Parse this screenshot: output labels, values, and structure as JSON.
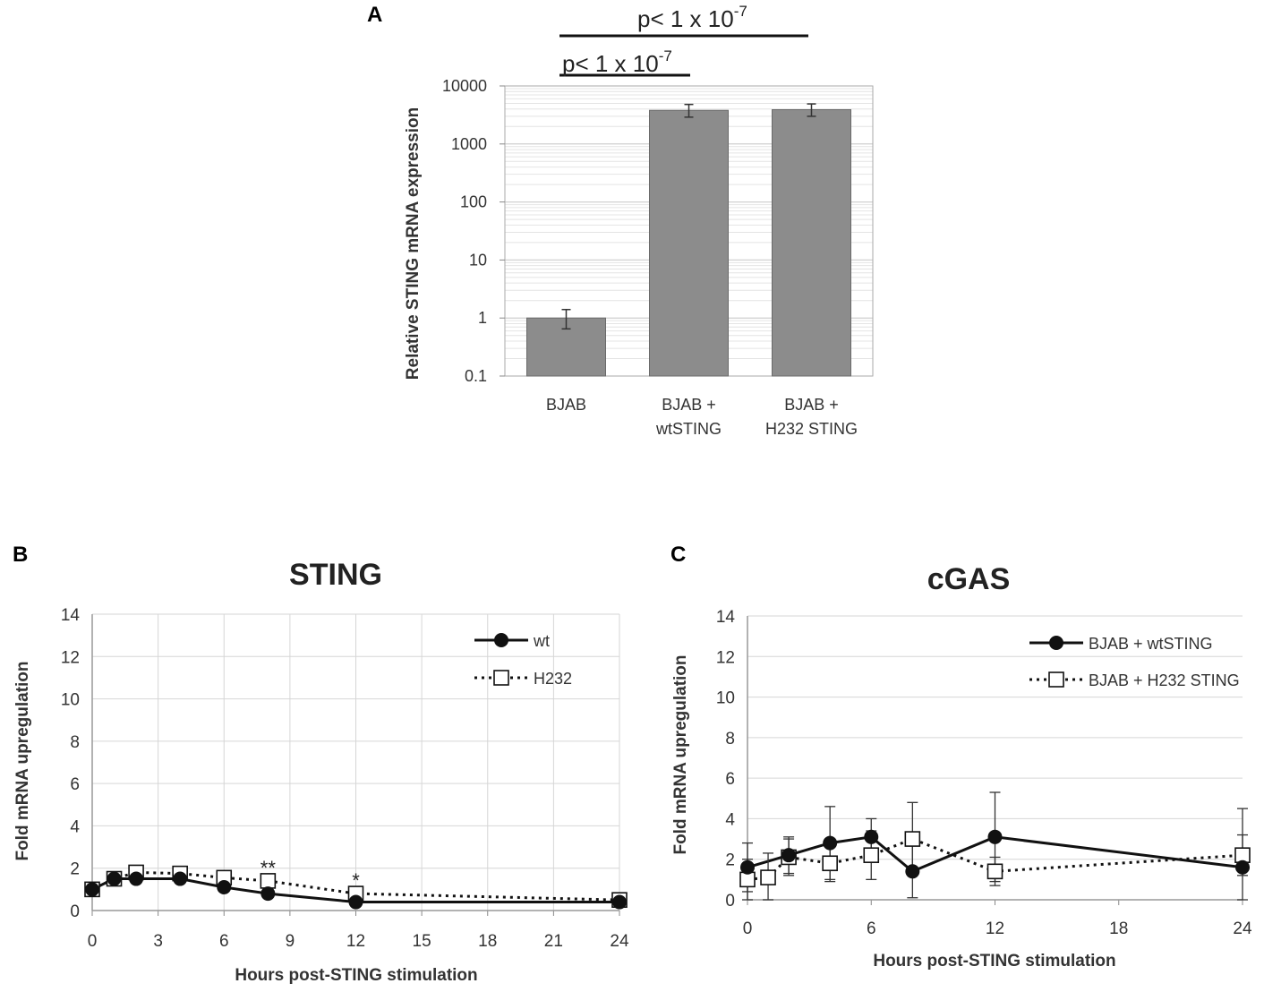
{
  "chart_data": [
    {
      "id": "A",
      "panel_label": "A",
      "type": "bar",
      "yscale": "log",
      "title": "",
      "xlabel": "",
      "ylabel": "Relative STING mRNA expression",
      "ylim": [
        0.1,
        10000
      ],
      "yticks": [
        "10000",
        "1000",
        "100",
        "10",
        "1",
        "0.1"
      ],
      "categories": [
        [
          "BJAB"
        ],
        [
          "BJAB +",
          "wtSTING"
        ],
        [
          "BJAB +",
          "H232 STING"
        ]
      ],
      "values": [
        1.0,
        3800,
        3900
      ],
      "err_low": [
        0.65,
        2900,
        3000
      ],
      "err_high": [
        1.4,
        4800,
        4900
      ],
      "grid": true,
      "significance": [
        {
          "base": "p< 1 x 10",
          "exponent": "-7",
          "from": 0,
          "to": 2
        },
        {
          "base": "p< 1 x 10",
          "exponent": "-7",
          "from": 0,
          "to": 1
        }
      ]
    },
    {
      "id": "B",
      "panel_label": "B",
      "type": "line",
      "title": "STING",
      "xlabel": "Hours post-STING stimulation",
      "ylabel": "Fold mRNA upregulation",
      "xlim": [
        0,
        24
      ],
      "ylim": [
        0,
        14
      ],
      "xticks": [
        "0",
        "3",
        "6",
        "9",
        "12",
        "15",
        "18",
        "21",
        "24"
      ],
      "yticks": [
        "0",
        "2",
        "4",
        "6",
        "8",
        "10",
        "12",
        "14"
      ],
      "grid": true,
      "legend_position": "top-right",
      "series": [
        {
          "name": "wt",
          "style": "solid",
          "marker": "filled-circle",
          "x": [
            0,
            1,
            2,
            4,
            6,
            8,
            12,
            24
          ],
          "y": [
            1.0,
            1.5,
            1.5,
            1.5,
            1.1,
            0.8,
            0.4,
            0.4
          ]
        },
        {
          "name": "H232",
          "style": "dotted",
          "marker": "open-square",
          "x": [
            0,
            1,
            2,
            4,
            6,
            8,
            12,
            24
          ],
          "y": [
            1.0,
            1.5,
            1.8,
            1.75,
            1.55,
            1.4,
            0.8,
            0.5
          ]
        }
      ],
      "annotations": [
        {
          "text": "**",
          "x": 8,
          "y": 2.2
        },
        {
          "text": "*",
          "x": 12,
          "y": 1.6
        }
      ]
    },
    {
      "id": "C",
      "panel_label": "C",
      "type": "line",
      "title": "cGAS",
      "xlabel": "Hours post-STING stimulation",
      "ylabel": "Fold mRNA upregulation",
      "xlim": [
        0,
        24
      ],
      "ylim": [
        0,
        14
      ],
      "xticks": [
        "0",
        "6",
        "12",
        "18",
        "24"
      ],
      "yticks": [
        "0",
        "2",
        "4",
        "6",
        "8",
        "10",
        "12",
        "14"
      ],
      "grid": true,
      "legend_position": "top-right",
      "series": [
        {
          "name": "BJAB + wtSTING",
          "style": "solid",
          "marker": "filled-circle",
          "x": [
            0,
            2,
            4,
            6,
            8,
            12,
            24
          ],
          "y": [
            1.6,
            2.2,
            2.8,
            3.1,
            1.4,
            3.1,
            1.6
          ],
          "err": [
            1.2,
            0.9,
            1.8,
            0.9,
            1.3,
            2.2,
            2.9
          ]
        },
        {
          "name": "BJAB + H232 STING",
          "style": "dotted",
          "marker": "open-square",
          "x": [
            0,
            1,
            2,
            4,
            6,
            8,
            12,
            24
          ],
          "y": [
            1.0,
            1.1,
            2.1,
            1.8,
            2.2,
            3.0,
            1.4,
            2.2
          ],
          "err": [
            1.0,
            1.2,
            0.9,
            0.9,
            1.2,
            1.8,
            0.7,
            1.0
          ]
        }
      ]
    }
  ]
}
